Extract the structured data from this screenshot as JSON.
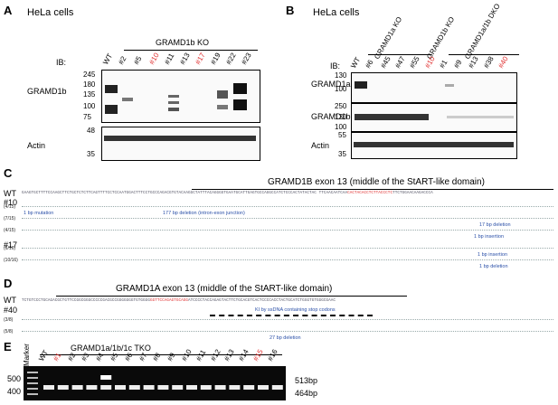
{
  "panelA": {
    "letter": "A",
    "cells": "HeLa cells",
    "ko_label": "GRAMD1b KO",
    "ib_label": "IB:",
    "lanes": [
      "WT",
      "#2",
      "#5",
      "#10",
      "#11",
      "#13",
      "#17",
      "#19",
      "#22",
      "#23"
    ],
    "red_lanes": [
      "#10",
      "#17"
    ],
    "blot1_label": "GRAMD1b",
    "blot1_mw": [
      "245",
      "180",
      "135",
      "100",
      "75"
    ],
    "blot2_label": "Actin",
    "blot2_mw": [
      "48",
      "35"
    ]
  },
  "panelB": {
    "letter": "B",
    "cells": "HeLa cells",
    "group1": "GRAMD1a KO",
    "group2": "GRAMD1b KO",
    "group3": "GRAMD1a/1b DKO",
    "ib_label": "IB:",
    "lanes": [
      "WT",
      "#6",
      "#45",
      "#47",
      "#55",
      "#10",
      "#1",
      "#9",
      "#13",
      "#38",
      "#40"
    ],
    "red_lanes": [
      "#10",
      "#40"
    ],
    "blot1_label": "GRAMD1a",
    "blot1_mw": [
      "130",
      "100"
    ],
    "blot2_label": "GRAMD1b",
    "blot2_mw": [
      "250",
      "130",
      "100"
    ],
    "blot3_label": "Actin",
    "blot3_mw": [
      "55",
      "35"
    ]
  },
  "panelC": {
    "letter": "C",
    "title": "GRAMD1B exon 13 (middle of the StART-like domain)",
    "wt": "WT",
    "clone1": "#10",
    "clone2": "#17",
    "counts": [
      "(4/15)",
      "(7/15)",
      "(4/15)",
      "(6/16)",
      "(10/16)"
    ],
    "notes": [
      "1 bp mutation",
      "177 bp deletion (intron-exon junction)",
      "17 bp deletion",
      "1 bp insertion",
      "1 bp insertion",
      "1 bp deletion"
    ]
  },
  "panelD": {
    "letter": "D",
    "title": "GRAMD1A exon 13 (middle of the StART-like domain)",
    "wt": "WT",
    "clone": "#40",
    "counts": [
      "(3/8)",
      "(5/8)"
    ],
    "notes": [
      "KI by ssDNA containing stop codons",
      "27 bp deletion"
    ]
  },
  "panelE": {
    "letter": "E",
    "title": "GRAMD1a/1b/1c TKO",
    "marker": "Marker",
    "lanes": [
      "WT",
      "#1",
      "#2",
      "#3",
      "#4",
      "#5",
      "#6",
      "#7",
      "#8",
      "#9",
      "#10",
      "#11",
      "#12",
      "#13",
      "#14",
      "#15",
      "#16"
    ],
    "red_lanes": [
      "#1",
      "#15"
    ],
    "mw": [
      "500",
      "400"
    ],
    "bands": [
      "513bp",
      "464bp"
    ]
  },
  "colors": {
    "red": "#e03030",
    "blue": "#2b50a8"
  }
}
